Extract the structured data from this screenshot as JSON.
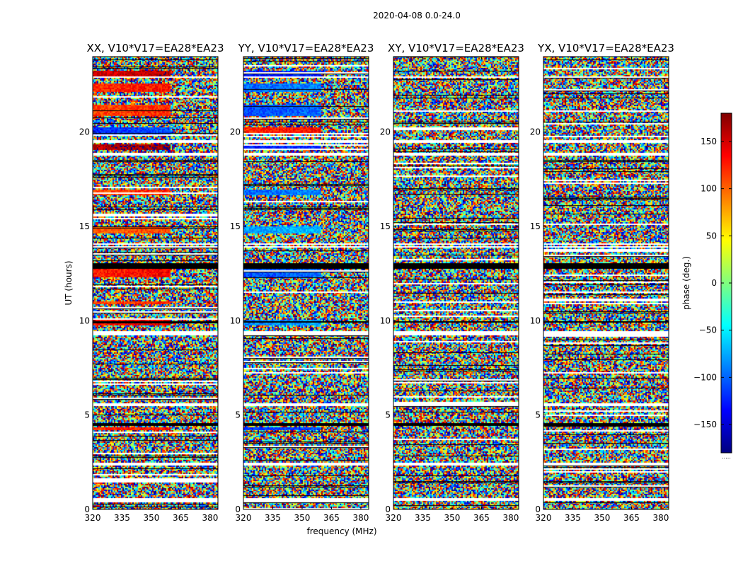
{
  "figure": {
    "suptitle": "2020-04-08 0.0-24.0",
    "xlabel": "frequency (MHz)",
    "ylabel": "UT (hours)"
  },
  "colorbar": {
    "label": "phase (deg.)",
    "range": [
      -180,
      180
    ],
    "ticks": [
      150,
      100,
      50,
      0,
      -50,
      -100,
      -150
    ],
    "tick_labels": [
      "150",
      "100",
      "50",
      "0",
      "−50",
      "−100",
      "−150"
    ],
    "colormap": [
      "#00007f",
      "#0000ff",
      "#007fff",
      "#00ffff",
      "#7fff7f",
      "#ffff00",
      "#ff7f00",
      "#ff0000",
      "#7f0000"
    ],
    "footnote": "....."
  },
  "chart_data": {
    "type": "heatmap",
    "value": "phase (deg.)",
    "x_range": [
      320,
      384
    ],
    "y_range": [
      0,
      24
    ],
    "x_ticks": [
      320,
      335,
      350,
      365,
      380
    ],
    "y_ticks": [
      0,
      5,
      10,
      15,
      20
    ],
    "panels": [
      {
        "title": "XX, V10*V17=EA28*EA23",
        "pol": "XX",
        "coherent_bands": [
          {
            "ut": [
              4.2,
              4.4
            ],
            "phase": 120
          },
          {
            "ut": [
              9.8,
              10.1
            ],
            "phase": 130
          },
          {
            "ut": [
              10.9,
              11.1
            ],
            "phase": 110
          },
          {
            "ut": [
              12.3,
              12.8
            ],
            "phase": 125
          },
          {
            "ut": [
              14.7,
              15.0
            ],
            "phase": 100
          },
          {
            "ut": [
              16.7,
              17.0
            ],
            "phase": 110
          },
          {
            "ut": [
              19.1,
              19.4
            ],
            "phase": 160
          },
          {
            "ut": [
              19.9,
              20.3
            ],
            "phase": -120
          },
          {
            "ut": [
              20.9,
              21.5
            ],
            "phase": 110
          },
          {
            "ut": [
              22.2,
              22.6
            ],
            "phase": 120
          },
          {
            "ut": [
              23.0,
              23.3
            ],
            "phase": 150
          }
        ]
      },
      {
        "title": "YY, V10*V17=EA28*EA23",
        "pol": "YY",
        "coherent_bands": [
          {
            "ut": [
              4.2,
              4.4
            ],
            "phase": -120
          },
          {
            "ut": [
              9.8,
              10.1
            ],
            "phase": -90
          },
          {
            "ut": [
              12.3,
              12.8
            ],
            "phase": -110
          },
          {
            "ut": [
              14.7,
              15.0
            ],
            "phase": -80
          },
          {
            "ut": [
              16.7,
              17.0
            ],
            "phase": -100
          },
          {
            "ut": [
              19.1,
              19.4
            ],
            "phase": -130
          },
          {
            "ut": [
              19.9,
              20.3
            ],
            "phase": 120
          },
          {
            "ut": [
              20.9,
              21.5
            ],
            "phase": -110
          },
          {
            "ut": [
              22.2,
              22.6
            ],
            "phase": -100
          },
          {
            "ut": [
              23.0,
              23.3
            ],
            "phase": -130
          }
        ]
      },
      {
        "title": "XY, V10*V17=EA28*EA23",
        "pol": "XY",
        "coherent_bands": []
      },
      {
        "title": "YX, V10*V17=EA28*EA23",
        "pol": "YX",
        "coherent_bands": []
      }
    ],
    "blank_rows_ut": [
      0.55,
      2.45,
      5.6,
      9.35,
      9.45,
      13.95,
      14.1,
      18.85,
      19.55,
      22.95
    ],
    "dark_rows_ut": [
      10.0,
      12.85,
      13.0,
      4.55
    ]
  }
}
